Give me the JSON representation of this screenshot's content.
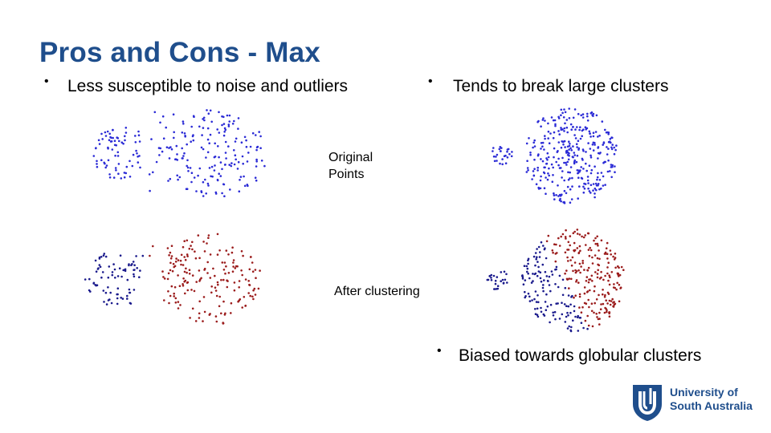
{
  "slide": {
    "title": "Pros and Cons - Max",
    "bullets": {
      "left": "Less susceptible to noise and outliers",
      "right_top": "Tends to break large clusters",
      "right_bottom": "Biased towards globular clusters"
    },
    "captions": {
      "original": "Original Points",
      "after": "After clustering"
    },
    "logo": {
      "line1": "University of",
      "line2": "South Australia"
    },
    "colors": {
      "title": "#1f4e8c",
      "original_points": "#2b2bd6",
      "cluster_blue": "#1a1a8c",
      "cluster_red": "#9b1c1c"
    }
  }
}
